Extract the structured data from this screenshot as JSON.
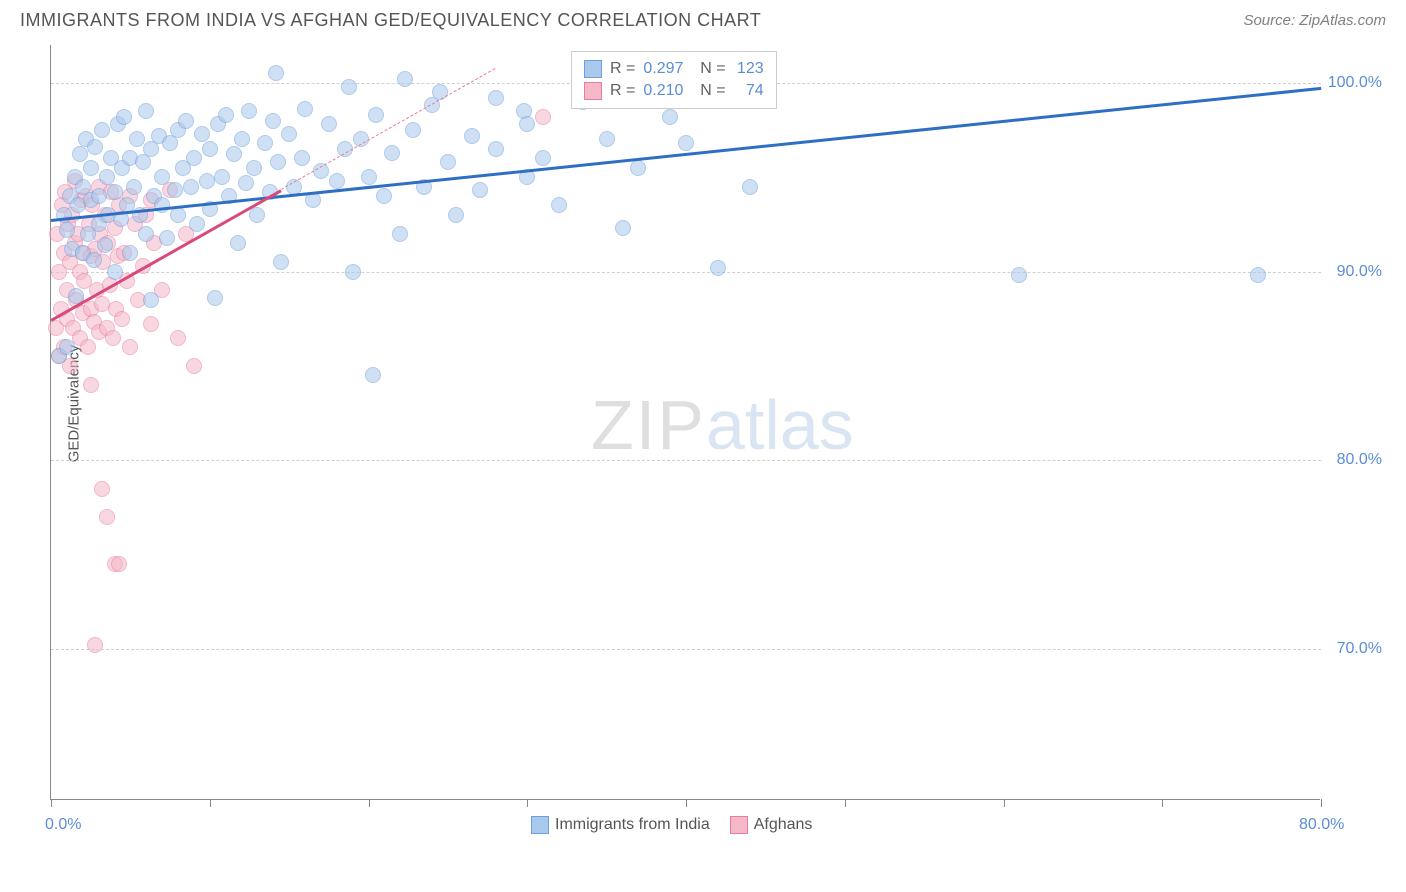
{
  "title": "IMMIGRANTS FROM INDIA VS AFGHAN GED/EQUIVALENCY CORRELATION CHART",
  "source": "Source: ZipAtlas.com",
  "y_axis_title": "GED/Equivalency",
  "watermark_zip": "ZIP",
  "watermark_atlas": "atlas",
  "chart": {
    "type": "scatter",
    "xlim": [
      0,
      80
    ],
    "ylim": [
      62,
      102
    ],
    "x_ticks": [
      0,
      10,
      20,
      30,
      40,
      50,
      60,
      70,
      80
    ],
    "x_tick_labels": {
      "0": "0.0%",
      "80": "80.0%"
    },
    "y_ticks": [
      70,
      80,
      90,
      100
    ],
    "y_tick_labels": {
      "70": "70.0%",
      "80": "80.0%",
      "90": "90.0%",
      "100": "100.0%"
    },
    "background_color": "#ffffff",
    "grid_color": "#d0d0d0",
    "axis_color": "#888888",
    "marker_radius": 8,
    "marker_opacity": 0.55,
    "series": [
      {
        "name": "Immigrants from India",
        "fill": "#a8c8ec",
        "stroke": "#6ca0dc",
        "trend_color": "#2e6fc4",
        "R": "0.297",
        "N": "123",
        "trend": {
          "x1": 0,
          "y1": 92.8,
          "x2": 80,
          "y2": 99.8,
          "solid_until_x": 80
        },
        "points": [
          [
            0.5,
            85.5
          ],
          [
            0.8,
            93
          ],
          [
            1,
            86
          ],
          [
            1,
            92.2
          ],
          [
            1.2,
            94
          ],
          [
            1.3,
            91.2
          ],
          [
            1.5,
            95
          ],
          [
            1.6,
            88.7
          ],
          [
            1.7,
            93.5
          ],
          [
            1.8,
            96.2
          ],
          [
            2,
            91
          ],
          [
            2,
            94.5
          ],
          [
            2.2,
            97
          ],
          [
            2.3,
            92
          ],
          [
            2.5,
            93.8
          ],
          [
            2.5,
            95.5
          ],
          [
            2.7,
            90.6
          ],
          [
            2.8,
            96.6
          ],
          [
            3,
            92.5
          ],
          [
            3,
            94
          ],
          [
            3.2,
            97.5
          ],
          [
            3.4,
            91.4
          ],
          [
            3.5,
            95
          ],
          [
            3.6,
            93
          ],
          [
            3.8,
            96
          ],
          [
            4,
            90
          ],
          [
            4,
            94.2
          ],
          [
            4.2,
            97.8
          ],
          [
            4.4,
            92.8
          ],
          [
            4.5,
            95.5
          ],
          [
            4.6,
            98.2
          ],
          [
            4.8,
            93.5
          ],
          [
            5,
            96
          ],
          [
            5,
            91
          ],
          [
            5.2,
            94.5
          ],
          [
            5.4,
            97
          ],
          [
            5.6,
            93
          ],
          [
            5.8,
            95.8
          ],
          [
            6,
            98.5
          ],
          [
            6,
            92
          ],
          [
            6.3,
            96.5
          ],
          [
            6.5,
            94
          ],
          [
            6.8,
            97.2
          ],
          [
            7,
            93.5
          ],
          [
            7,
            95
          ],
          [
            7.3,
            91.8
          ],
          [
            7.5,
            96.8
          ],
          [
            7.8,
            94.3
          ],
          [
            8,
            97.5
          ],
          [
            8,
            93
          ],
          [
            8.3,
            95.5
          ],
          [
            8.5,
            98
          ],
          [
            8.8,
            94.5
          ],
          [
            9,
            96
          ],
          [
            9.2,
            92.5
          ],
          [
            9.5,
            97.3
          ],
          [
            9.8,
            94.8
          ],
          [
            10,
            96.5
          ],
          [
            10,
            93.3
          ],
          [
            10.5,
            97.8
          ],
          [
            10.8,
            95
          ],
          [
            11,
            98.3
          ],
          [
            11.2,
            94
          ],
          [
            11.5,
            96.2
          ],
          [
            11.8,
            91.5
          ],
          [
            12,
            97
          ],
          [
            12.3,
            94.7
          ],
          [
            12.5,
            98.5
          ],
          [
            12.8,
            95.5
          ],
          [
            13,
            93
          ],
          [
            13.5,
            96.8
          ],
          [
            13.8,
            94.2
          ],
          [
            14,
            98
          ],
          [
            14.3,
            95.8
          ],
          [
            14.5,
            90.5
          ],
          [
            15,
            97.3
          ],
          [
            15.3,
            94.5
          ],
          [
            15.8,
            96
          ],
          [
            16,
            98.6
          ],
          [
            16.5,
            93.8
          ],
          [
            17,
            95.3
          ],
          [
            17.5,
            97.8
          ],
          [
            18,
            94.8
          ],
          [
            18.5,
            96.5
          ],
          [
            19,
            90
          ],
          [
            19.5,
            97
          ],
          [
            20,
            95
          ],
          [
            20.3,
            84.5
          ],
          [
            20.5,
            98.3
          ],
          [
            21,
            94
          ],
          [
            21.5,
            96.3
          ],
          [
            22,
            92
          ],
          [
            22.8,
            97.5
          ],
          [
            23.5,
            94.5
          ],
          [
            24,
            98.8
          ],
          [
            25,
            95.8
          ],
          [
            25.5,
            93
          ],
          [
            26.5,
            97.2
          ],
          [
            27,
            94.3
          ],
          [
            28,
            96.5
          ],
          [
            28,
            99.2
          ],
          [
            29.8,
            98.5
          ],
          [
            30,
            95
          ],
          [
            30,
            97.8
          ],
          [
            31,
            96
          ],
          [
            32,
            93.5
          ],
          [
            33.5,
            99
          ],
          [
            35,
            97
          ],
          [
            36,
            92.3
          ],
          [
            37,
            95.5
          ],
          [
            39,
            98.2
          ],
          [
            40,
            96.8
          ],
          [
            42,
            90.2
          ],
          [
            44,
            94.5
          ],
          [
            44.5,
            100.5
          ],
          [
            61,
            89.8
          ],
          [
            6.3,
            88.5
          ],
          [
            10.3,
            88.6
          ],
          [
            76,
            89.8
          ],
          [
            14.2,
            100.5
          ],
          [
            18.8,
            99.8
          ],
          [
            22.3,
            100.2
          ],
          [
            24.5,
            99.5
          ]
        ]
      },
      {
        "name": "Afghans",
        "fill": "#f5b8c8",
        "stroke": "#e87ba0",
        "trend_color": "#d94a7a",
        "R": "0.210",
        "N": "74",
        "trend": {
          "x1": 0,
          "y1": 87.5,
          "x2": 28,
          "y2": 100.8,
          "solid_until_x": 14.5
        },
        "points": [
          [
            0.3,
            87
          ],
          [
            0.4,
            92
          ],
          [
            0.5,
            85.5
          ],
          [
            0.5,
            90
          ],
          [
            0.6,
            88
          ],
          [
            0.7,
            93.5
          ],
          [
            0.8,
            86
          ],
          [
            0.8,
            91
          ],
          [
            0.9,
            94.2
          ],
          [
            1,
            87.5
          ],
          [
            1,
            89
          ],
          [
            1.1,
            92.5
          ],
          [
            1.2,
            85
          ],
          [
            1.2,
            90.5
          ],
          [
            1.3,
            93
          ],
          [
            1.4,
            87
          ],
          [
            1.5,
            91.5
          ],
          [
            1.5,
            94.8
          ],
          [
            1.6,
            88.5
          ],
          [
            1.7,
            92
          ],
          [
            1.8,
            86.5
          ],
          [
            1.8,
            90
          ],
          [
            1.9,
            93.8
          ],
          [
            2,
            87.8
          ],
          [
            2,
            91
          ],
          [
            2.1,
            89.5
          ],
          [
            2.2,
            94
          ],
          [
            2.3,
            86
          ],
          [
            2.4,
            92.5
          ],
          [
            2.5,
            88
          ],
          [
            2.5,
            90.8
          ],
          [
            2.6,
            93.5
          ],
          [
            2.7,
            87.3
          ],
          [
            2.8,
            91.2
          ],
          [
            2.9,
            89
          ],
          [
            3,
            94.5
          ],
          [
            3,
            86.8
          ],
          [
            3.1,
            92
          ],
          [
            3.2,
            88.3
          ],
          [
            3.3,
            90.5
          ],
          [
            3.4,
            93
          ],
          [
            3.5,
            87
          ],
          [
            3.6,
            91.5
          ],
          [
            3.7,
            89.3
          ],
          [
            3.8,
            94.2
          ],
          [
            3.9,
            86.5
          ],
          [
            4,
            92.3
          ],
          [
            4.1,
            88
          ],
          [
            4.2,
            90.8
          ],
          [
            4.3,
            93.5
          ],
          [
            4.5,
            87.5
          ],
          [
            4.6,
            91
          ],
          [
            4.8,
            89.5
          ],
          [
            5,
            94
          ],
          [
            5,
            86
          ],
          [
            5.3,
            92.5
          ],
          [
            5.5,
            88.5
          ],
          [
            5.8,
            90.3
          ],
          [
            6,
            93
          ],
          [
            6.3,
            87.2
          ],
          [
            6.5,
            91.5
          ],
          [
            7,
            89
          ],
          [
            7.5,
            94.3
          ],
          [
            8,
            86.5
          ],
          [
            8.5,
            92
          ],
          [
            9,
            85
          ],
          [
            2.5,
            84
          ],
          [
            3.2,
            78.5
          ],
          [
            3.5,
            77
          ],
          [
            4,
            74.5
          ],
          [
            4.3,
            74.5
          ],
          [
            2.8,
            70.2
          ],
          [
            6.3,
            93.8
          ],
          [
            31,
            98.2
          ]
        ]
      }
    ]
  },
  "legend_bottom": [
    {
      "label": "Immigrants from India",
      "fill": "#a8c8ec",
      "stroke": "#6ca0dc"
    },
    {
      "label": "Afghans",
      "fill": "#f5b8c8",
      "stroke": "#e87ba0"
    }
  ]
}
